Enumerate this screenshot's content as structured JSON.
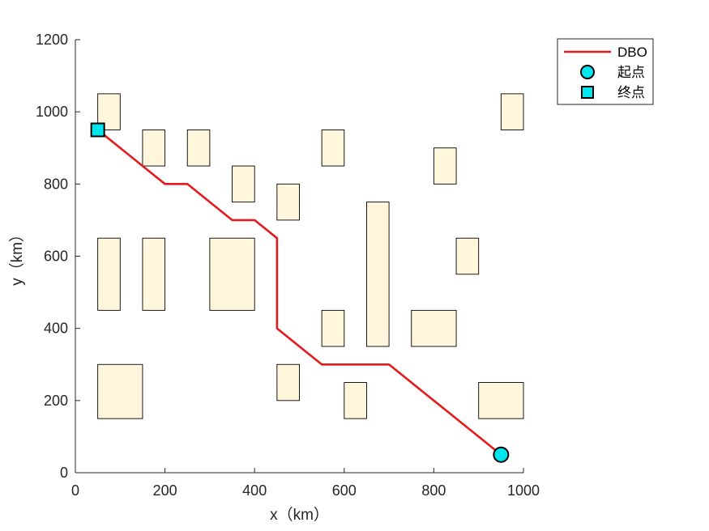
{
  "chart_data": {
    "type": "line",
    "xlabel": "x（km）",
    "ylabel": "y（km）",
    "xlim": [
      0,
      1000
    ],
    "ylim": [
      0,
      1200
    ],
    "xticks": [
      0,
      200,
      400,
      600,
      800,
      1000
    ],
    "yticks": [
      0,
      200,
      400,
      600,
      800,
      1000,
      1200
    ],
    "grid": false,
    "legend_position": "top-right, outside plot",
    "obstacle_color": "#fff6dc",
    "obstacles": [
      {
        "x0": 50,
        "y0": 950,
        "x1": 100,
        "y1": 1050
      },
      {
        "x0": 150,
        "y0": 850,
        "x1": 200,
        "y1": 950
      },
      {
        "x0": 250,
        "y0": 850,
        "x1": 300,
        "y1": 950
      },
      {
        "x0": 350,
        "y0": 750,
        "x1": 400,
        "y1": 850
      },
      {
        "x0": 450,
        "y0": 700,
        "x1": 500,
        "y1": 800
      },
      {
        "x0": 550,
        "y0": 850,
        "x1": 600,
        "y1": 950
      },
      {
        "x0": 800,
        "y0": 800,
        "x1": 850,
        "y1": 900
      },
      {
        "x0": 950,
        "y0": 950,
        "x1": 1000,
        "y1": 1050
      },
      {
        "x0": 50,
        "y0": 450,
        "x1": 100,
        "y1": 650
      },
      {
        "x0": 150,
        "y0": 450,
        "x1": 200,
        "y1": 650
      },
      {
        "x0": 300,
        "y0": 450,
        "x1": 400,
        "y1": 650
      },
      {
        "x0": 850,
        "y0": 550,
        "x1": 900,
        "y1": 650
      },
      {
        "x0": 650,
        "y0": 350,
        "x1": 700,
        "y1": 750
      },
      {
        "x0": 550,
        "y0": 350,
        "x1": 600,
        "y1": 450
      },
      {
        "x0": 750,
        "y0": 350,
        "x1": 850,
        "y1": 450
      },
      {
        "x0": 50,
        "y0": 150,
        "x1": 150,
        "y1": 300
      },
      {
        "x0": 450,
        "y0": 200,
        "x1": 500,
        "y1": 300
      },
      {
        "x0": 600,
        "y0": 150,
        "x1": 650,
        "y1": 250
      },
      {
        "x0": 900,
        "y0": 150,
        "x1": 1000,
        "y1": 250
      }
    ],
    "series": [
      {
        "name": "DBO",
        "color": "#e41a1c",
        "x": [
          950,
          700,
          550,
          450,
          450,
          400,
          350,
          250,
          200,
          150,
          50
        ],
        "y": [
          50,
          300,
          300,
          400,
          650,
          700,
          700,
          800,
          800,
          850,
          950
        ]
      }
    ],
    "markers": [
      {
        "name": "起点",
        "shape": "circle",
        "color": "#00e5ee",
        "x": 950,
        "y": 50
      },
      {
        "name": "终点",
        "shape": "square",
        "color": "#00e5ee",
        "x": 50,
        "y": 950
      }
    ]
  }
}
